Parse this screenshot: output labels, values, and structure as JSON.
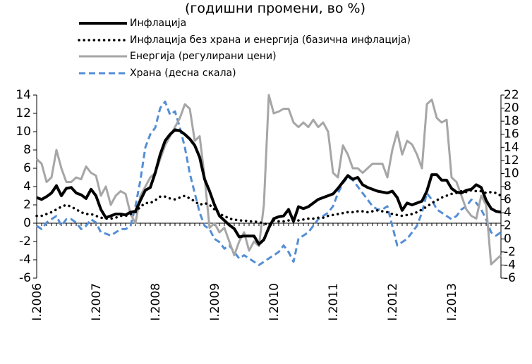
{
  "chart_data": {
    "type": "line",
    "title": "(годишни промени, во %)",
    "categories": [
      "I.2006",
      null,
      null,
      null,
      null,
      null,
      null,
      null,
      null,
      null,
      null,
      null,
      "I.2007",
      null,
      null,
      null,
      null,
      null,
      null,
      null,
      null,
      null,
      null,
      null,
      "I.2008",
      null,
      null,
      null,
      null,
      null,
      null,
      null,
      null,
      null,
      null,
      null,
      "I.2009",
      null,
      null,
      null,
      null,
      null,
      null,
      null,
      null,
      null,
      null,
      null,
      "I.2010",
      null,
      null,
      null,
      null,
      null,
      null,
      null,
      null,
      null,
      null,
      null,
      "I.2011",
      null,
      null,
      null,
      null,
      null,
      null,
      null,
      null,
      null,
      null,
      null,
      "I.2012",
      null,
      null,
      null,
      null,
      null,
      null,
      null,
      null,
      null,
      null,
      null,
      "I.2013",
      null,
      null,
      null,
      null,
      null,
      null,
      null,
      null,
      null,
      null
    ],
    "ylim": [
      -6,
      14
    ],
    "yticks": [
      -6,
      -4,
      -2,
      0,
      2,
      4,
      6,
      8,
      10,
      12,
      14
    ],
    "y2lim": [
      -6,
      22
    ],
    "y2ticks": [
      -6,
      -4,
      -2,
      0,
      2,
      4,
      6,
      8,
      10,
      12,
      14,
      16,
      18,
      20,
      22
    ],
    "series": [
      {
        "name": "Инфлација",
        "color": "#000000",
        "style": "solid",
        "width": 4,
        "values": [
          2.8,
          2.6,
          2.9,
          3.3,
          4.1,
          3.0,
          3.8,
          3.9,
          3.3,
          3.1,
          2.7,
          3.7,
          3.0,
          1.5,
          0.6,
          0.8,
          1.0,
          1.0,
          0.9,
          1.2,
          1.3,
          2.5,
          3.6,
          3.9,
          5.5,
          7.5,
          9.0,
          9.7,
          10.2,
          10.1,
          9.7,
          9.2,
          8.5,
          7.2,
          4.8,
          3.5,
          2.0,
          0.8,
          0.3,
          -0.2,
          -0.6,
          -1.5,
          -1.4,
          -1.4,
          -1.4,
          -2.3,
          -1.8,
          -0.5,
          0.5,
          0.7,
          0.8,
          1.5,
          0.2,
          1.8,
          1.6,
          1.8,
          2.2,
          2.6,
          2.8,
          3.0,
          3.2,
          3.8,
          4.5,
          5.2,
          4.8,
          5.0,
          4.2,
          3.9,
          3.7,
          3.5,
          3.4,
          3.3,
          3.5,
          2.8,
          1.4,
          2.2,
          2.0,
          2.2,
          2.4,
          3.5,
          5.3,
          5.3,
          4.7,
          4.7,
          3.8,
          3.4,
          3.3,
          3.6,
          3.7,
          4.2,
          3.9,
          2.5,
          1.6,
          1.3,
          1.2
        ]
      },
      {
        "name": "Инфлација без храна и енергија (базична инфлација)",
        "color": "#000000",
        "style": "dotted",
        "width": 3.5,
        "values": [
          0.8,
          0.8,
          1.0,
          1.2,
          1.5,
          1.8,
          2.0,
          1.8,
          1.5,
          1.2,
          1.0,
          1.0,
          0.8,
          0.6,
          0.5,
          0.5,
          0.6,
          0.8,
          0.8,
          1.0,
          1.2,
          1.8,
          2.2,
          2.2,
          2.5,
          2.9,
          2.9,
          2.7,
          2.6,
          2.8,
          3.0,
          2.7,
          2.4,
          2.0,
          2.2,
          2.0,
          1.5,
          1.0,
          0.8,
          0.5,
          0.4,
          0.3,
          0.3,
          0.2,
          0.2,
          0.1,
          0.0,
          -0.2,
          0.3,
          0.2,
          0.2,
          0.3,
          0.4,
          0.3,
          0.4,
          0.5,
          0.5,
          0.6,
          0.6,
          0.8,
          0.9,
          1.0,
          1.1,
          1.2,
          1.2,
          1.3,
          1.3,
          1.2,
          1.3,
          1.4,
          1.3,
          1.2,
          1.0,
          0.9,
          0.8,
          0.9,
          1.0,
          1.2,
          1.5,
          1.8,
          2.2,
          2.5,
          2.8,
          3.0,
          3.2,
          3.3,
          3.5,
          3.4,
          3.6,
          3.5,
          3.5,
          3.3,
          3.4,
          3.3,
          3.0
        ]
      },
      {
        "name": "Енергија (регулирани цени)",
        "color": "#a6a6a6",
        "style": "solid",
        "width": 3,
        "values": [
          7.0,
          6.5,
          4.5,
          5.0,
          8.0,
          6.0,
          4.5,
          4.5,
          5.0,
          4.8,
          6.2,
          5.5,
          5.2,
          3.0,
          4.0,
          2.0,
          3.0,
          3.5,
          3.2,
          1.0,
          0.0,
          3.0,
          4.0,
          5.0,
          5.5,
          7.0,
          8.5,
          9.5,
          10.5,
          11.5,
          13.0,
          12.5,
          9.0,
          9.5,
          5.0,
          -0.5,
          0.0,
          -1.0,
          -0.5,
          -2.0,
          -3.5,
          -2.0,
          -1.0,
          -3.0,
          -2.0,
          -2.5,
          2.0,
          14.0,
          12.0,
          12.2,
          12.5,
          12.5,
          11.0,
          10.5,
          11.0,
          10.5,
          11.3,
          10.5,
          11.0,
          10.0,
          5.5,
          5.0,
          8.5,
          7.5,
          6.0,
          6.0,
          5.5,
          6.0,
          6.5,
          6.5,
          6.5,
          5.0,
          8.0,
          10.0,
          7.5,
          9.0,
          8.6,
          7.5,
          6.0,
          13.0,
          13.5,
          11.5,
          11.0,
          11.3,
          5.0,
          4.5,
          3.0,
          1.5,
          0.8,
          0.5,
          3.0,
          2.0,
          -4.5,
          -4.0,
          -3.5
        ]
      },
      {
        "name": "Храна (десна скала)",
        "color": "#558ed5",
        "style": "dashed",
        "width": 3,
        "axis": "y2",
        "values": [
          2.0,
          1.5,
          2.5,
          3.0,
          3.5,
          2.0,
          3.0,
          3.0,
          2.5,
          1.5,
          2.0,
          3.0,
          2.5,
          1.0,
          0.8,
          0.5,
          1.0,
          1.5,
          1.5,
          2.0,
          5.0,
          9.0,
          14.0,
          16.0,
          17.0,
          20.0,
          21.0,
          19.0,
          19.5,
          17.0,
          14.0,
          10.0,
          7.0,
          4.0,
          2.0,
          1.5,
          0.0,
          -0.5,
          -1.5,
          -1.0,
          -2.0,
          -3.0,
          -2.5,
          -3.0,
          -3.5,
          -4.0,
          -3.5,
          -3.0,
          -2.5,
          -2.0,
          -1.0,
          -2.0,
          -3.5,
          0.0,
          0.5,
          1.0,
          2.0,
          3.0,
          3.5,
          4.0,
          5.0,
          7.0,
          8.5,
          9.5,
          9.0,
          8.0,
          7.0,
          6.0,
          5.0,
          4.5,
          4.5,
          5.0,
          2.0,
          -1.0,
          -0.5,
          0.0,
          1.0,
          2.0,
          4.0,
          7.0,
          6.0,
          4.5,
          4.0,
          3.5,
          3.0,
          3.5,
          4.5,
          5.0,
          6.0,
          5.5,
          4.5,
          3.0,
          1.0,
          0.5,
          1.0
        ]
      }
    ]
  }
}
